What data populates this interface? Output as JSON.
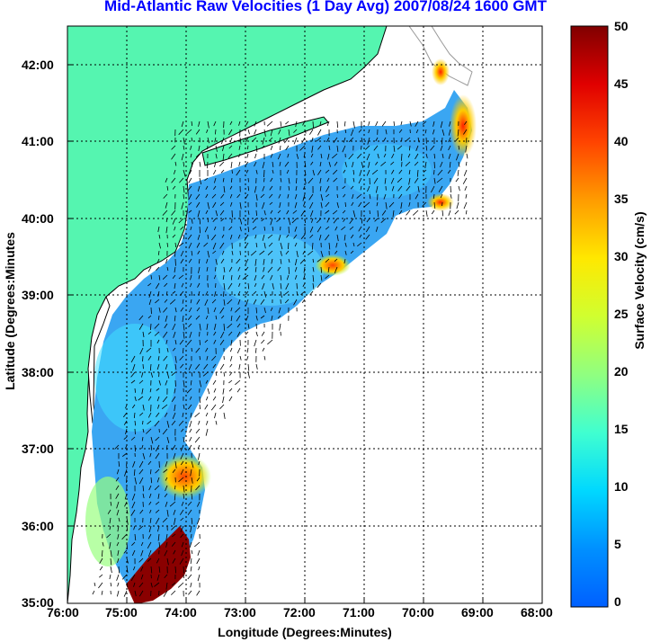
{
  "title": "Mid-Atlantic Raw Velocities (1 Day Avg) 2007/08/24 1600 GMT",
  "xlabel": "Longitude (Degrees:Minutes)",
  "ylabel": "Latitude (Degrees:Minutes",
  "colorbar_label": "Surface Velocity (cm/s)",
  "x_ticks": [
    "76:00",
    "75:00",
    "74:00",
    "73:00",
    "72:00",
    "71:00",
    "70:00",
    "69:00",
    "68:00"
  ],
  "y_ticks": [
    "42:00",
    "41:00",
    "40:00",
    "39:00",
    "38:00",
    "37:00",
    "36:00",
    "35:00"
  ],
  "colorbar_ticks": [
    "50",
    "45",
    "40",
    "35",
    "30",
    "25",
    "20",
    "15",
    "10",
    "5",
    "0"
  ],
  "colors": {
    "land": "#55f5b0",
    "ocean_blue": "#3fa8f0",
    "title": "#0000ff",
    "coast": "#000000",
    "bathymetry": "#888888"
  },
  "map": {
    "lon_range": [
      -76,
      -68
    ],
    "lat_range": [
      35,
      42.5
    ],
    "colorbar_range_cm_s": [
      0,
      50
    ],
    "grid": "dotted"
  }
}
